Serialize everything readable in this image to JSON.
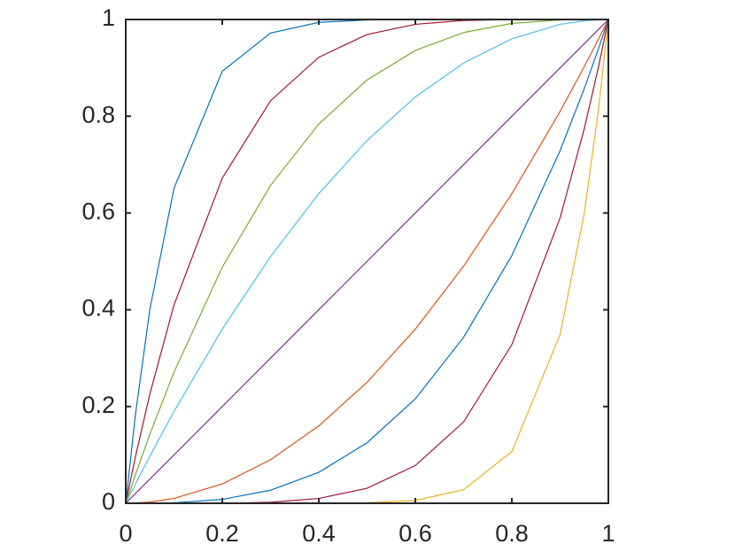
{
  "chart_data": {
    "type": "line",
    "x": [
      0,
      0.02,
      0.05,
      0.1,
      0.2,
      0.3,
      0.4,
      0.5,
      0.6,
      0.7,
      0.8,
      0.9,
      0.95,
      0.98,
      1
    ],
    "series": [
      {
        "color": "#0072BD",
        "values": [
          0,
          0.183,
          0.401,
          0.651,
          0.893,
          0.972,
          0.994,
          0.999,
          1,
          1,
          1,
          1,
          1,
          1,
          1
        ]
      },
      {
        "color": "#A2142F",
        "values": [
          0,
          0.096,
          0.226,
          0.41,
          0.672,
          0.832,
          0.922,
          0.969,
          0.99,
          0.998,
          1,
          1,
          1,
          1,
          1
        ]
      },
      {
        "color": "#77AC30",
        "values": [
          0,
          0.059,
          0.143,
          0.271,
          0.488,
          0.657,
          0.784,
          0.875,
          0.936,
          0.973,
          0.992,
          0.999,
          1,
          1,
          1
        ]
      },
      {
        "color": "#4DBEEE",
        "values": [
          0,
          0.0396,
          0.0975,
          0.19,
          0.36,
          0.51,
          0.64,
          0.75,
          0.84,
          0.91,
          0.96,
          0.99,
          0.9975,
          0.9996,
          1
        ]
      },
      {
        "color": "#7E2F8E",
        "values": [
          0,
          0.02,
          0.05,
          0.1,
          0.2,
          0.3,
          0.4,
          0.5,
          0.6,
          0.7,
          0.8,
          0.9,
          0.95,
          0.98,
          1
        ]
      },
      {
        "color": "#D95319",
        "values": [
          0,
          0.0004,
          0.0025,
          0.01,
          0.04,
          0.09,
          0.16,
          0.25,
          0.36,
          0.49,
          0.64,
          0.81,
          0.9025,
          0.9604,
          1
        ]
      },
      {
        "color": "#0072BD",
        "values": [
          0,
          0,
          0,
          0.001,
          0.008,
          0.027,
          0.064,
          0.125,
          0.216,
          0.343,
          0.512,
          0.729,
          0.857,
          0.941,
          1
        ]
      },
      {
        "color": "#A2142F",
        "values": [
          0,
          0,
          0,
          0,
          0,
          0.002,
          0.01,
          0.031,
          0.078,
          0.168,
          0.328,
          0.59,
          0.774,
          0.904,
          1
        ]
      },
      {
        "color": "#EDB120",
        "values": [
          0,
          0,
          0,
          0,
          0,
          0,
          0,
          0.001,
          0.006,
          0.028,
          0.107,
          0.349,
          0.599,
          0.817,
          1
        ]
      }
    ],
    "xlim": [
      0,
      1
    ],
    "ylim": [
      0,
      1
    ],
    "xticks": [
      0,
      0.2,
      0.4,
      0.6,
      0.8,
      1
    ],
    "yticks": [
      0,
      0.2,
      0.4,
      0.6,
      0.8,
      1
    ]
  }
}
